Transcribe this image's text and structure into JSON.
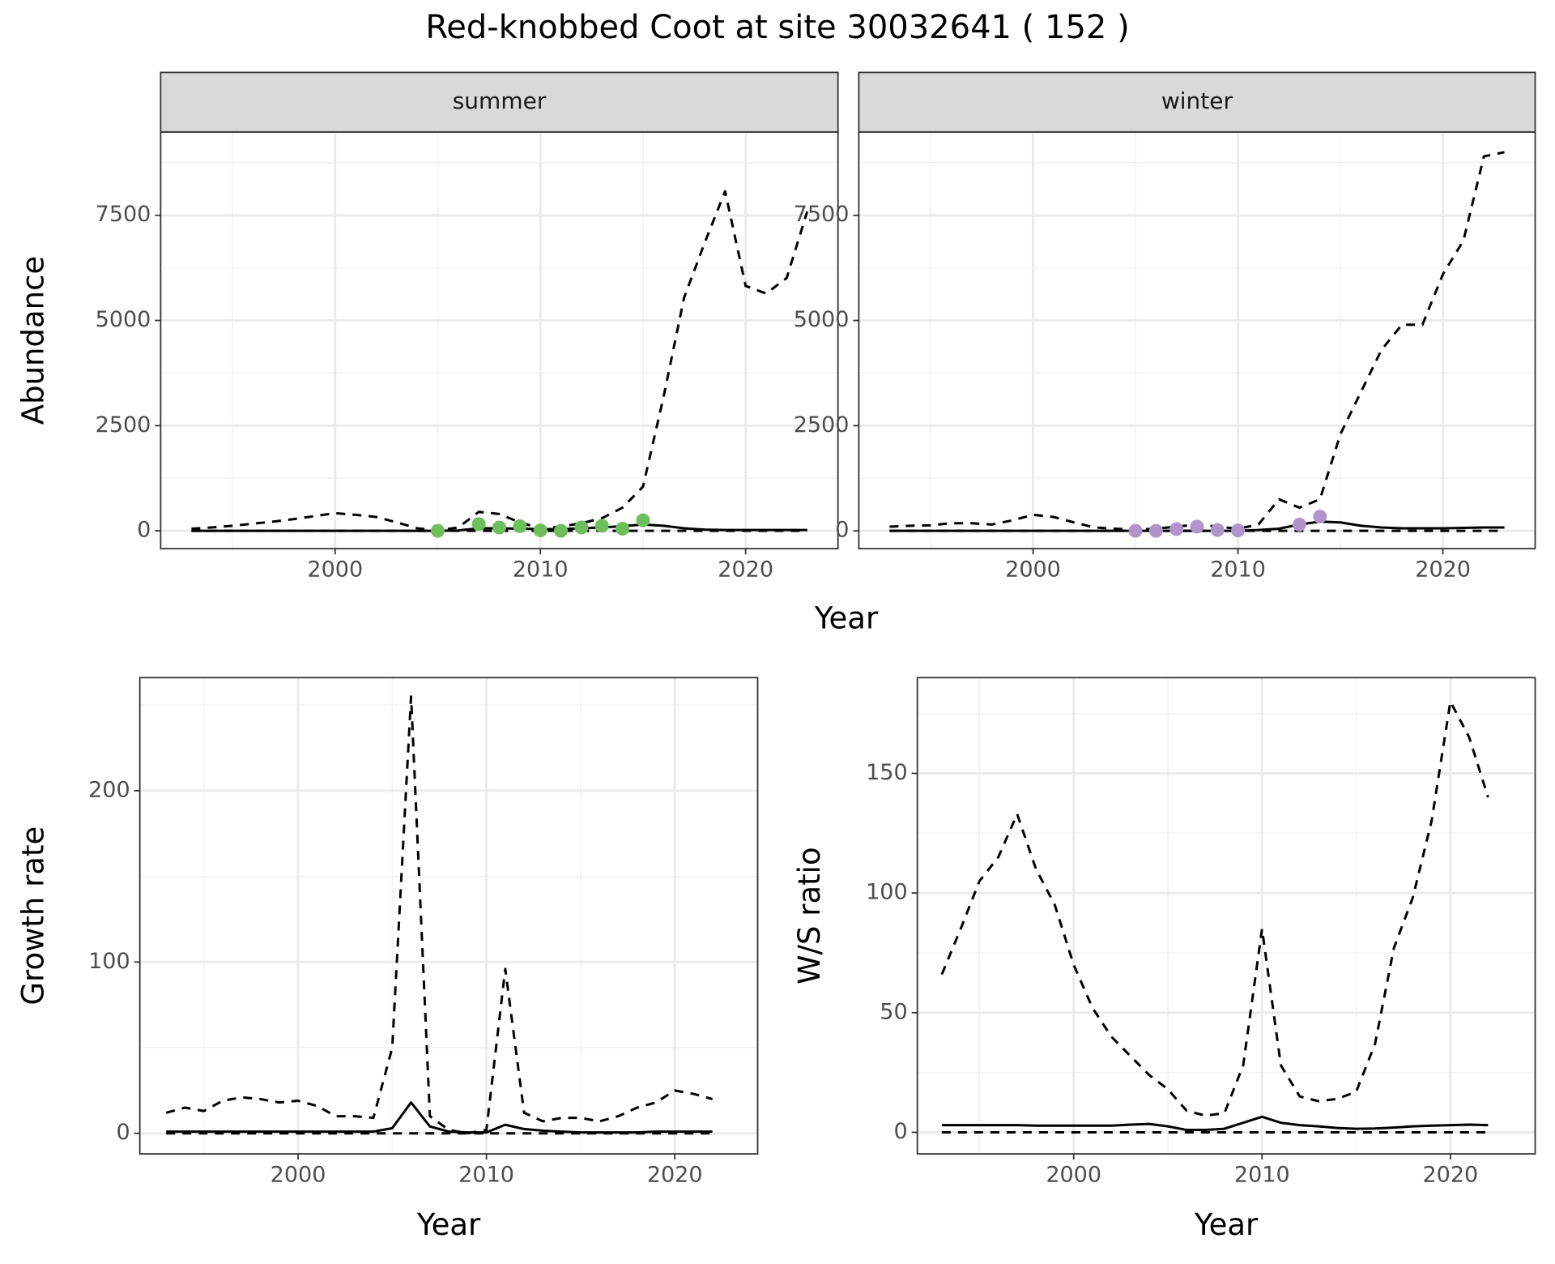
{
  "title": "Red-knobbed Coot at site 30032641 ( 152 )",
  "xlabel": "Year",
  "chart_data": [
    {
      "type": "line",
      "strip": "summer",
      "ylabel": "Abundance",
      "xlim": [
        1991.5,
        2024.5
      ],
      "xticks": [
        2000,
        2010,
        2020
      ],
      "xminor": [
        1995,
        2005,
        2015
      ],
      "ylim": [
        -424,
        9481
      ],
      "yticks": [
        0,
        2500,
        5000,
        7500
      ],
      "yminor": [
        1250,
        3750,
        6250,
        8750
      ],
      "grid": true,
      "x": [
        1993,
        1994,
        1995,
        1996,
        1997,
        1998,
        1999,
        2000,
        2001,
        2002,
        2003,
        2004,
        2005,
        2006,
        2007,
        2008,
        2009,
        2010,
        2011,
        2012,
        2013,
        2014,
        2015,
        2016,
        2017,
        2018,
        2019,
        2020,
        2021,
        2022,
        2023
      ],
      "series": [
        {
          "color": "#000000",
          "linestyle": "dashed",
          "values": [
            50,
            80,
            120,
            170,
            220,
            280,
            350,
            420,
            380,
            330,
            200,
            60,
            10,
            80,
            450,
            400,
            200,
            60,
            100,
            180,
            300,
            550,
            1050,
            3180,
            5540,
            6840,
            8070,
            5820,
            5640,
            6010,
            7590
          ]
        },
        {
          "color": "#000000",
          "linestyle": "solid",
          "values": [
            0,
            0,
            0,
            0,
            0,
            0,
            0,
            0,
            0,
            0,
            0,
            0,
            0,
            10,
            60,
            60,
            50,
            40,
            40,
            60,
            80,
            110,
            150,
            120,
            60,
            30,
            20,
            20,
            20,
            20,
            20
          ]
        },
        {
          "color": "#000000",
          "linestyle": "dashed",
          "values": [
            0,
            0,
            0,
            0,
            0,
            0,
            0,
            0,
            0,
            0,
            0,
            0,
            0,
            0,
            0,
            0,
            0,
            0,
            0,
            0,
            0,
            0,
            0,
            0,
            0,
            0,
            0,
            0,
            0,
            0,
            0
          ]
        },
        {
          "color": "#6dbf5b",
          "marker": "point",
          "x": [
            2005,
            2007,
            2008,
            2009,
            2010,
            2011,
            2012,
            2013,
            2014,
            2015
          ],
          "values": [
            0,
            160,
            80,
            110,
            10,
            0,
            80,
            120,
            50,
            250
          ]
        }
      ]
    },
    {
      "type": "line",
      "strip": "winter",
      "xlim": [
        1991.5,
        2024.5
      ],
      "xticks": [
        2000,
        2010,
        2020
      ],
      "xminor": [
        1995,
        2005,
        2015
      ],
      "ylim": [
        -424,
        9481
      ],
      "yticks": [
        0,
        2500,
        5000,
        7500
      ],
      "yminor": [
        1250,
        3750,
        6250,
        8750
      ],
      "grid": true,
      "x": [
        1993,
        1994,
        1995,
        1996,
        1997,
        1998,
        1999,
        2000,
        2001,
        2002,
        2003,
        2004,
        2005,
        2006,
        2007,
        2008,
        2009,
        2010,
        2011,
        2012,
        2013,
        2014,
        2015,
        2016,
        2017,
        2018,
        2019,
        2020,
        2021,
        2022,
        2023
      ],
      "series": [
        {
          "color": "#000000",
          "linestyle": "dashed",
          "values": [
            100,
            120,
            130,
            180,
            180,
            150,
            250,
            380,
            330,
            200,
            80,
            50,
            30,
            50,
            100,
            150,
            100,
            50,
            150,
            750,
            550,
            750,
            2300,
            3300,
            4300,
            4900,
            4900,
            6100,
            6900,
            8900,
            9000
          ]
        },
        {
          "color": "#000000",
          "linestyle": "solid",
          "values": [
            0,
            0,
            0,
            0,
            0,
            0,
            0,
            0,
            0,
            0,
            0,
            0,
            0,
            0,
            0,
            0,
            0,
            0,
            20,
            50,
            150,
            220,
            200,
            120,
            80,
            60,
            60,
            60,
            70,
            80,
            80
          ]
        },
        {
          "color": "#000000",
          "linestyle": "dashed",
          "values": [
            0,
            0,
            0,
            0,
            0,
            0,
            0,
            0,
            0,
            0,
            0,
            0,
            0,
            0,
            0,
            0,
            0,
            0,
            0,
            0,
            0,
            0,
            0,
            0,
            0,
            0,
            0,
            0,
            0,
            0,
            0
          ]
        },
        {
          "color": "#b294cc",
          "marker": "point",
          "x": [
            2005,
            2006,
            2007,
            2008,
            2009,
            2010,
            2013,
            2014
          ],
          "values": [
            0,
            0,
            40,
            100,
            20,
            10,
            150,
            340
          ]
        }
      ]
    },
    {
      "type": "line",
      "ylabel": "Growth rate",
      "xlabel": "Year",
      "xlim": [
        1991.6,
        2024.4
      ],
      "xticks": [
        2000,
        2010,
        2020
      ],
      "xminor": [
        1995,
        2005,
        2015
      ],
      "ylim": [
        -12,
        266
      ],
      "yticks": [
        0,
        100,
        200
      ],
      "yminor": [
        50,
        150,
        250
      ],
      "grid": true,
      "x": [
        1993,
        1994,
        1995,
        1996,
        1997,
        1998,
        1999,
        2000,
        2001,
        2002,
        2003,
        2004,
        2005,
        2006,
        2007,
        2008,
        2009,
        2010,
        2011,
        2012,
        2013,
        2014,
        2015,
        2016,
        2017,
        2018,
        2019,
        2020,
        2021,
        2022
      ],
      "series": [
        {
          "color": "#000000",
          "linestyle": "dashed",
          "values": [
            12,
            15,
            13,
            19,
            21,
            20,
            18,
            19,
            16,
            10,
            10,
            9,
            50,
            255,
            10,
            2,
            0,
            2,
            96,
            12,
            7,
            9,
            9,
            7,
            10,
            15,
            18,
            25,
            23,
            20
          ]
        },
        {
          "color": "#000000",
          "linestyle": "solid",
          "values": [
            1,
            1,
            1,
            1,
            1,
            1,
            1,
            1,
            1,
            1,
            1,
            1,
            3,
            18,
            4,
            1,
            0.5,
            0.5,
            5,
            2.5,
            1.5,
            1,
            0.5,
            0.5,
            0.5,
            0.5,
            1,
            1,
            1,
            1
          ]
        },
        {
          "color": "#000000",
          "linestyle": "dashed",
          "values": [
            0,
            0,
            0,
            0,
            0,
            0,
            0,
            0,
            0,
            0,
            0,
            0,
            0,
            0,
            0,
            0,
            0,
            0,
            0,
            0,
            0,
            0,
            0,
            0,
            0,
            0,
            0,
            0,
            0,
            0
          ]
        }
      ]
    },
    {
      "type": "line",
      "ylabel": "W/S ratio",
      "xlabel": "Year",
      "xlim": [
        1991.7,
        2024.5
      ],
      "xticks": [
        2000,
        2010,
        2020
      ],
      "xminor": [
        1995,
        2005,
        2015
      ],
      "ylim": [
        -9,
        190
      ],
      "yticks": [
        0,
        50,
        100,
        150
      ],
      "yminor": [
        25,
        75,
        125,
        175
      ],
      "grid": true,
      "x": [
        1993,
        1994,
        1995,
        1996,
        1997,
        1998,
        1999,
        2000,
        2001,
        2002,
        2003,
        2004,
        2005,
        2006,
        2007,
        2008,
        2009,
        2010,
        2011,
        2012,
        2013,
        2014,
        2015,
        2016,
        2017,
        2018,
        2019,
        2020,
        2021,
        2022
      ],
      "series": [
        {
          "color": "#000000",
          "linestyle": "dashed",
          "values": [
            66,
            85,
            105,
            115,
            133,
            110,
            95,
            70,
            52,
            40,
            32,
            24,
            18,
            9,
            7,
            8,
            28,
            85,
            28,
            15,
            13,
            14,
            17,
            37,
            77,
            98,
            130,
            180,
            165,
            140
          ]
        },
        {
          "color": "#000000",
          "linestyle": "solid",
          "values": [
            3,
            3,
            3,
            3,
            3,
            2.8,
            2.8,
            2.8,
            2.8,
            2.8,
            3.2,
            3.5,
            2.5,
            1,
            1,
            1.5,
            4,
            6.5,
            4,
            3,
            2.5,
            1.8,
            1.5,
            1.6,
            2,
            2.5,
            2.8,
            3,
            3.2,
            3
          ]
        },
        {
          "color": "#000000",
          "linestyle": "dashed",
          "values": [
            0,
            0,
            0,
            0,
            0,
            0,
            0,
            0,
            0,
            0,
            0,
            0,
            0,
            0,
            0,
            0,
            0,
            0,
            0,
            0,
            0,
            0,
            0,
            0,
            0,
            0,
            0,
            0,
            0,
            0
          ]
        }
      ]
    }
  ]
}
